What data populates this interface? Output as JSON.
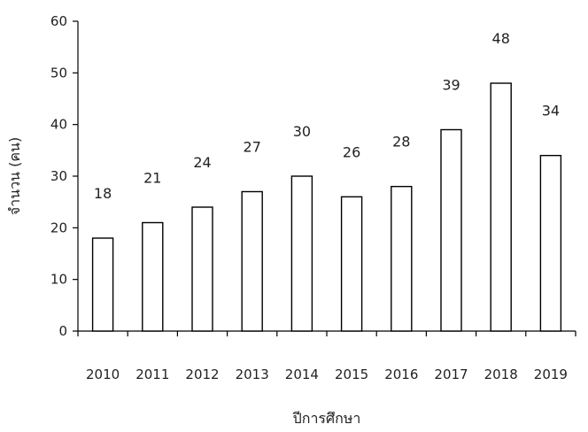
{
  "chart_data": {
    "type": "bar",
    "categories": [
      "2010",
      "2011",
      "2012",
      "2013",
      "2014",
      "2015",
      "2016",
      "2017",
      "2018",
      "2019"
    ],
    "values": [
      18,
      21,
      24,
      27,
      30,
      26,
      28,
      39,
      48,
      34
    ],
    "data_labels": [
      "18",
      "21",
      "24",
      "27",
      "30",
      "26",
      "28",
      "39",
      "48",
      "34"
    ],
    "title": "",
    "xlabel": "ปีการศึกษา",
    "ylabel": "จำนวน (คน)",
    "ylim": [
      0,
      60
    ],
    "yticks": [
      0,
      10,
      20,
      30,
      40,
      50,
      60
    ],
    "grid": false,
    "legend": "none",
    "colors": {
      "bar_fill": "#ffffff",
      "bar_stroke": "#000000"
    }
  }
}
